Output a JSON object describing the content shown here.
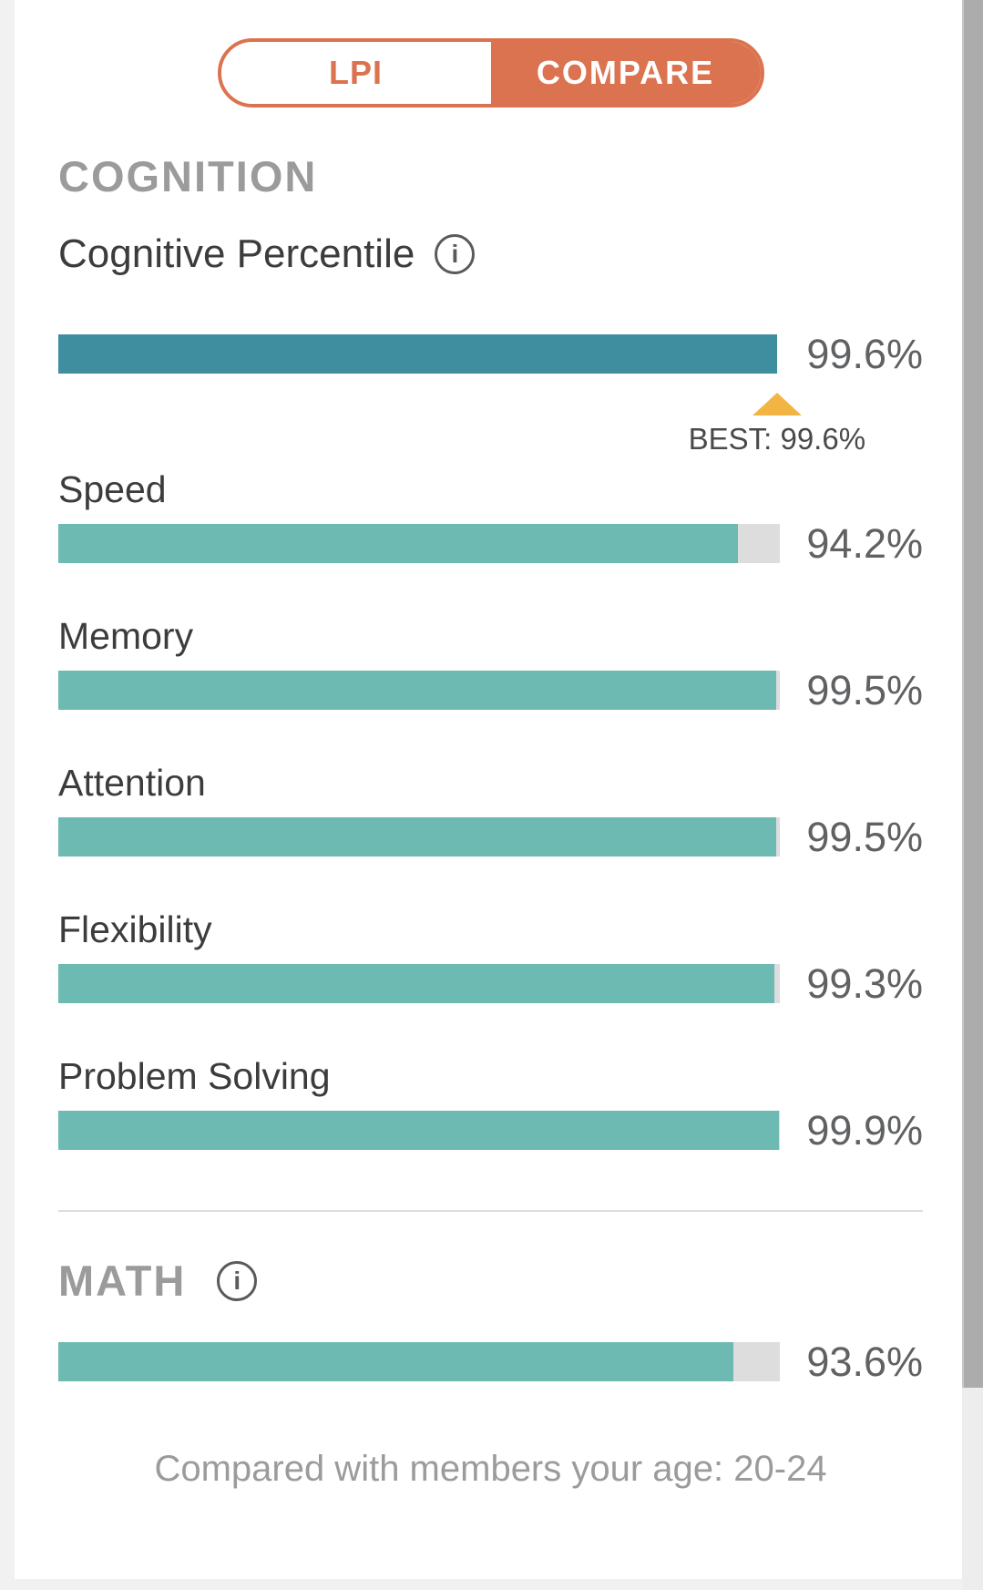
{
  "toggle": {
    "lpi_label": "LPI",
    "compare_label": "COMPARE",
    "active": "COMPARE"
  },
  "cognition": {
    "section_label": "COGNITION",
    "title": "Cognitive Percentile",
    "info_icon": "i",
    "overall": {
      "display": "99.6%",
      "pct": 99.6
    },
    "best": {
      "label": "BEST: 99.6%",
      "pct": 99.6
    },
    "rows": [
      {
        "label": "Speed",
        "display": "94.2%",
        "pct": 94.2
      },
      {
        "label": "Memory",
        "display": "99.5%",
        "pct": 99.5
      },
      {
        "label": "Attention",
        "display": "99.5%",
        "pct": 99.5
      },
      {
        "label": "Flexibility",
        "display": "99.3%",
        "pct": 99.3
      },
      {
        "label": "Problem Solving",
        "display": "99.9%",
        "pct": 99.9
      }
    ]
  },
  "math": {
    "section_label": "MATH",
    "info_icon": "i",
    "display": "93.6%",
    "pct": 93.6
  },
  "footer": {
    "note": "Compared with members your age: 20-24"
  },
  "colors": {
    "accent_orange": "#dc7350",
    "bar_dark_teal": "#3e8e9f",
    "bar_teal": "#6cbab2",
    "bar_track_gray": "#dddddd",
    "marker_amber": "#f2b544",
    "heading_gray": "#9b9b9b"
  },
  "chart_data": {
    "type": "bar",
    "categories": [
      "Cognitive Percentile",
      "Speed",
      "Memory",
      "Attention",
      "Flexibility",
      "Problem Solving",
      "Math"
    ],
    "values": [
      99.6,
      94.2,
      99.5,
      99.5,
      99.3,
      99.9,
      93.6
    ],
    "title": "COGNITION",
    "xlabel": "",
    "ylabel": "Percentile",
    "xlim": [
      0,
      100
    ],
    "annotations": [
      "BEST: 99.6%",
      "Compared with members your age: 20-24"
    ],
    "legend": "none",
    "grid": false
  }
}
